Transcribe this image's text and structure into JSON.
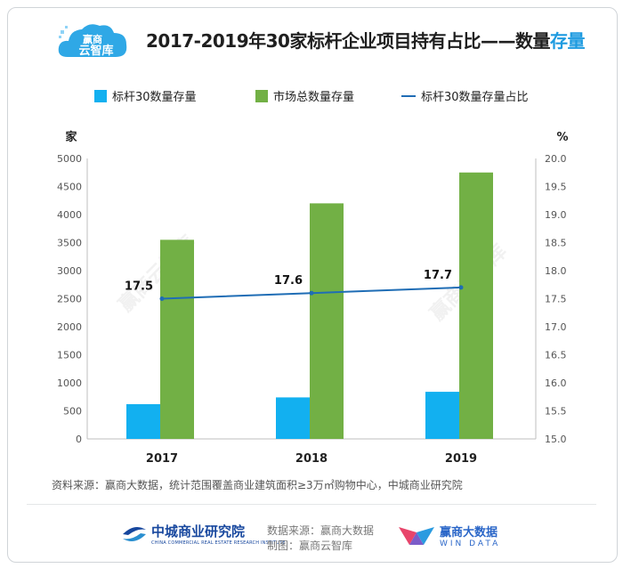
{
  "header": {
    "logo_text_top": "赢商",
    "logo_text_bottom": "云智库",
    "title_main": "2017-2019年30家标杆企业项目持有占比——数量",
    "title_highlight": "存量"
  },
  "chart_data": {
    "type": "bar",
    "categories": [
      "2017",
      "2018",
      "2019"
    ],
    "series": [
      {
        "name": "标杆30数量存量",
        "type": "bar",
        "axis": "left",
        "color": "#12b0f0",
        "values": [
          620,
          740,
          840
        ]
      },
      {
        "name": "市场总数量存量",
        "type": "bar",
        "axis": "left",
        "color": "#72b045",
        "values": [
          3550,
          4200,
          4750
        ]
      },
      {
        "name": "标杆30数量存量占比",
        "type": "line",
        "axis": "right",
        "color": "#1f6db5",
        "values": [
          17.5,
          17.6,
          17.7
        ]
      }
    ],
    "data_labels": [
      "17.5",
      "17.6",
      "17.7"
    ],
    "y_left": {
      "unit": "家",
      "min": 0,
      "max": 5000,
      "ticks": [
        "0",
        "500",
        "1000",
        "1500",
        "2000",
        "2500",
        "3000",
        "3500",
        "4000",
        "4500",
        "5000"
      ]
    },
    "y_right": {
      "unit": "%",
      "min": 15.0,
      "max": 20.0,
      "ticks": [
        "15.0",
        "15.5",
        "16.0",
        "16.5",
        "17.0",
        "17.5",
        "18.0",
        "18.5",
        "19.0",
        "19.5",
        "20.0"
      ]
    },
    "grid": false,
    "legend": "top"
  },
  "source_note": "资料来源：赢商大数据，统计范围覆盖商业建筑面积≥3万㎡购物中心，中城商业研究院",
  "footer": {
    "org_name": "中城商业研究院",
    "org_sub": "CHINA COMMERCIAL REAL ESTATE RESEARCH INSTITUTE",
    "data_source": "数据来源：赢商大数据",
    "made_by": "制图：赢商云智库",
    "brand_name": "赢商大数据",
    "brand_sub": "WIN DATA"
  },
  "watermark_text": "赢商云智库",
  "colors": {
    "accent": "#1e9be0",
    "bar_small": "#12b0f0",
    "bar_large": "#72b045",
    "line": "#1f6db5"
  }
}
